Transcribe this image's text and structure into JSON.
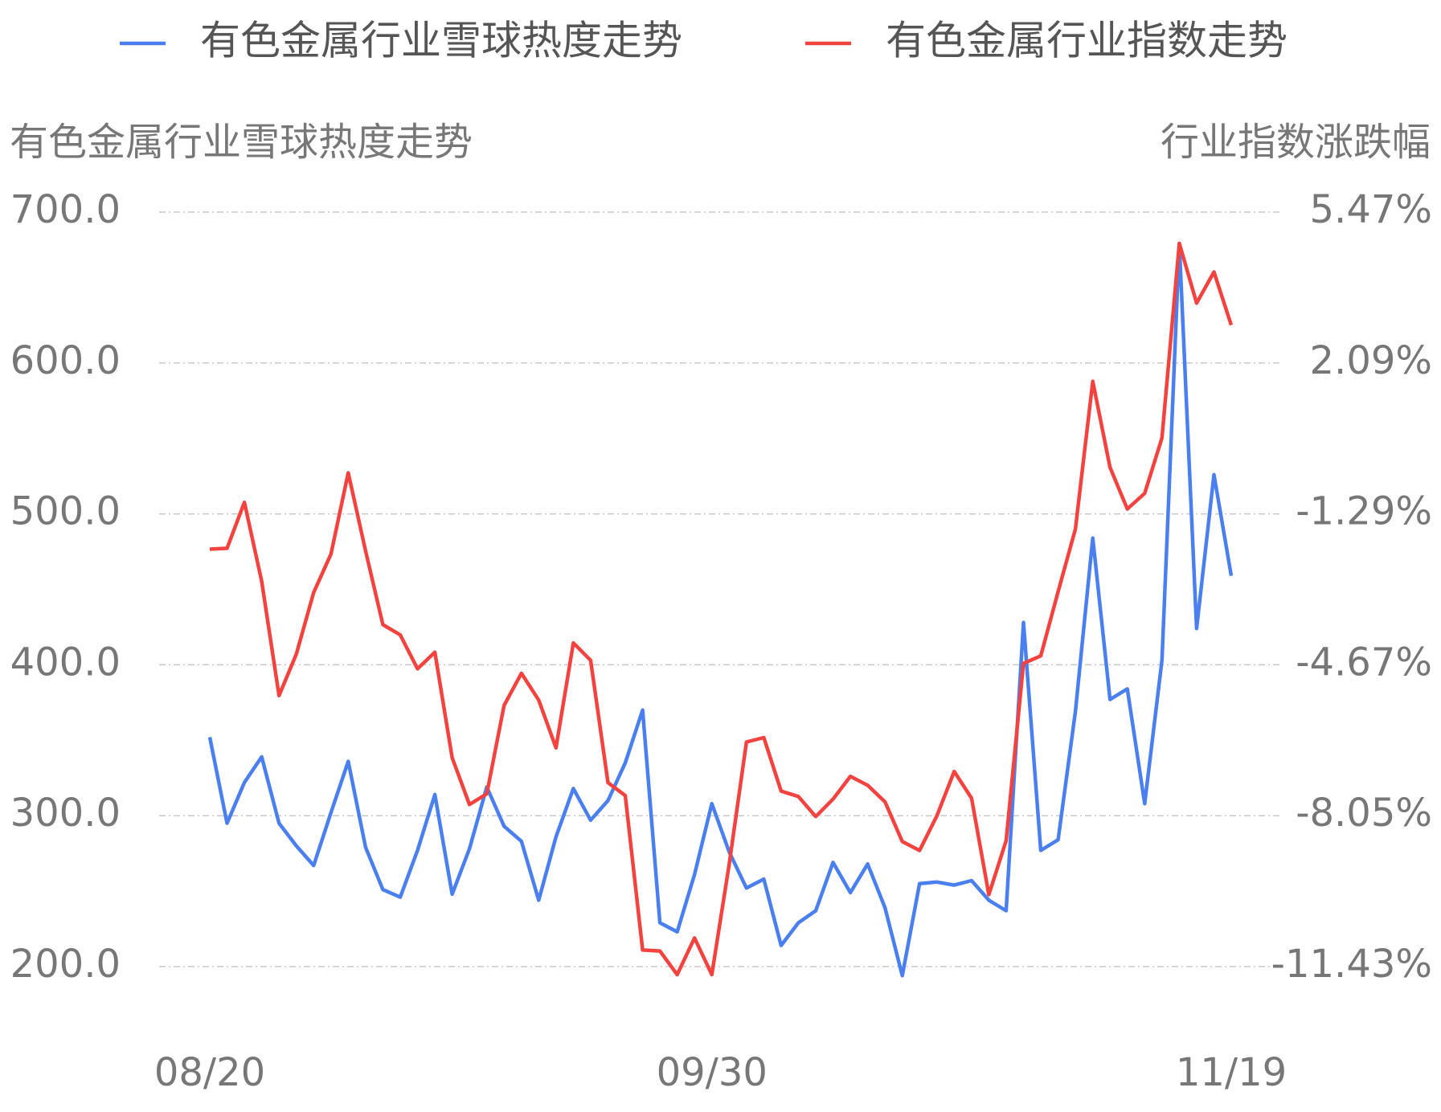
{
  "chart_data": {
    "type": "line",
    "y_title": "有色金属行业雪球热度走势",
    "y2_title": "行业指数涨跌幅",
    "categories": [
      "08/20",
      null,
      null,
      null,
      null,
      null,
      null,
      null,
      null,
      null,
      null,
      null,
      null,
      null,
      null,
      null,
      null,
      null,
      null,
      null,
      null,
      null,
      null,
      null,
      null,
      null,
      null,
      null,
      null,
      "09/30",
      null,
      null,
      null,
      null,
      null,
      null,
      null,
      null,
      null,
      null,
      null,
      null,
      null,
      null,
      null,
      null,
      null,
      null,
      null,
      null,
      null,
      null,
      null,
      null,
      null,
      null,
      null,
      null,
      null,
      "11/19"
    ],
    "series": [
      {
        "name": "有色金属行业雪球热度走势",
        "color": "#4a7ff0",
        "values": [
          352,
          295,
          322,
          339,
          295,
          280,
          267,
          302,
          336,
          279,
          251,
          246,
          277,
          314,
          248,
          278,
          319,
          293,
          283,
          244,
          286,
          318,
          297,
          310,
          335,
          370,
          229,
          223,
          261,
          308,
          276,
          252,
          258,
          214,
          229,
          237,
          269,
          249,
          268,
          239,
          194,
          255,
          256,
          254,
          257,
          244,
          237,
          428,
          277,
          284,
          369,
          484,
          377,
          384,
          308,
          403,
          679,
          424,
          526,
          459
        ]
      },
      {
        "name": "有色金属行业指数走势",
        "color": "#f4423f",
        "axis": "y2",
        "values": [
          -2.08,
          -2.06,
          -1.03,
          -2.8,
          -5.36,
          -4.43,
          -3.05,
          -2.19,
          -0.37,
          -2.12,
          -3.77,
          -4.0,
          -4.76,
          -4.39,
          -6.75,
          -7.8,
          -7.56,
          -5.58,
          -4.86,
          -5.46,
          -6.53,
          -4.18,
          -4.57,
          -7.31,
          -7.6,
          -11.06,
          -11.08,
          -11.61,
          -10.79,
          -11.61,
          -9.14,
          -6.4,
          -6.3,
          -7.5,
          -7.62,
          -8.07,
          -7.68,
          -7.17,
          -7.37,
          -7.74,
          -8.63,
          -8.83,
          -8.05,
          -7.06,
          -7.66,
          -9.82,
          -8.61,
          -4.64,
          -4.47,
          -3.03,
          -1.63,
          1.68,
          -0.25,
          -1.18,
          -0.83,
          0.41,
          4.77,
          3.43,
          4.13,
          2.94
        ]
      }
    ],
    "ylim": [
      200,
      700
    ],
    "yticks": [
      {
        "value": 200,
        "label": "200.0"
      },
      {
        "value": 300,
        "label": "300.0"
      },
      {
        "value": 400,
        "label": "400.0"
      },
      {
        "value": 500,
        "label": "500.0"
      },
      {
        "value": 600,
        "label": "600.0"
      },
      {
        "value": 700,
        "label": "700.0"
      }
    ],
    "y2lim": [
      -11.43,
      5.47
    ],
    "y2ticks": [
      {
        "value": -11.43,
        "label": "-11.43%"
      },
      {
        "value": -8.05,
        "label": "-8.05%"
      },
      {
        "value": -4.67,
        "label": "-4.67%"
      },
      {
        "value": -1.29,
        "label": "-1.29%"
      },
      {
        "value": 2.09,
        "label": "2.09%"
      },
      {
        "value": 5.47,
        "label": "5.47%"
      }
    ],
    "grid": true,
    "legend": "top"
  }
}
